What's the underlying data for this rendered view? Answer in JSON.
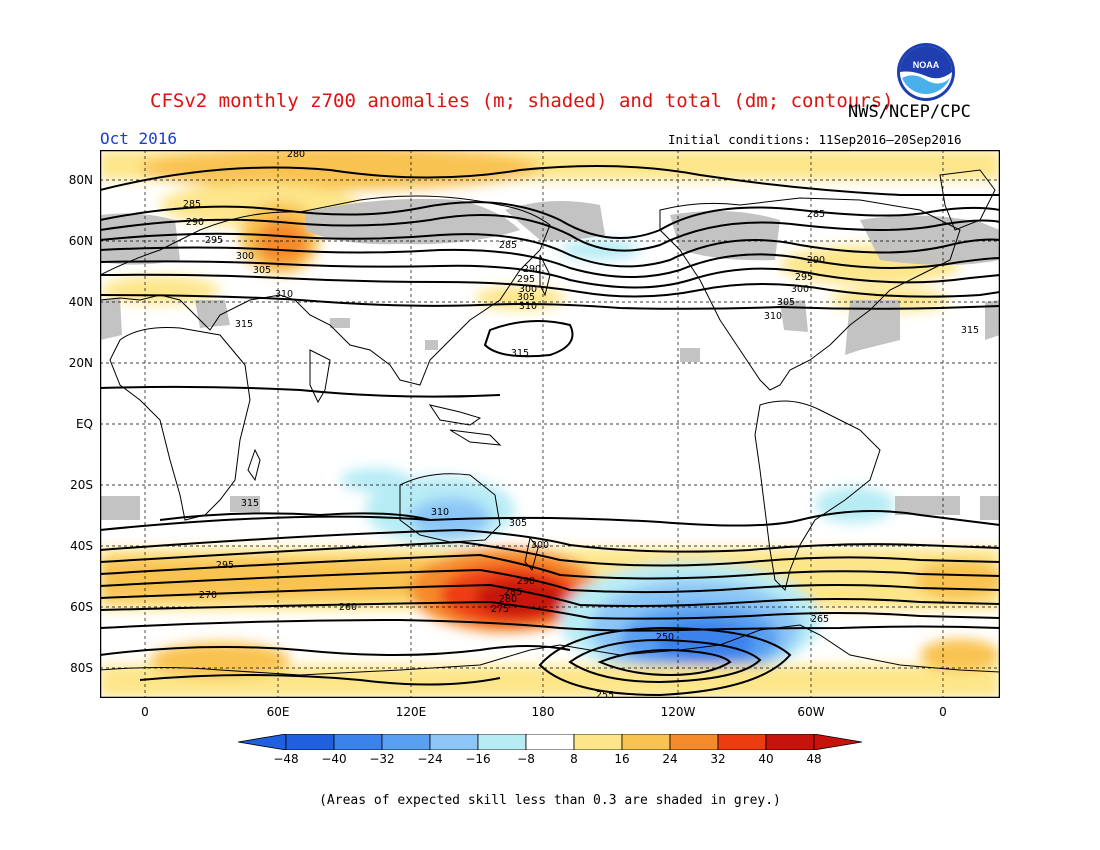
{
  "header": {
    "title": "CFSv2 monthly z700 anomalies (m; shaded) and total (dm; contours)",
    "agency": "NWS/NCEP/CPC",
    "month": "Oct 2016",
    "initial_conditions": "Initial conditions: 11Sep2016–20Sep2016",
    "logo_text": "NOAA"
  },
  "map": {
    "lat_labels": [
      "80N",
      "60N",
      "40N",
      "20N",
      "EQ",
      "20S",
      "40S",
      "60S",
      "80S"
    ],
    "lon_labels": [
      "0",
      "60E",
      "120E",
      "180",
      "120W",
      "60W",
      "0"
    ],
    "contour_labels_nh": [
      "280",
      "285",
      "290",
      "295",
      "300",
      "305",
      "310",
      "315",
      "285",
      "290",
      "295",
      "300",
      "305",
      "310",
      "315",
      "285",
      "290",
      "295",
      "300",
      "305",
      "310",
      "315"
    ],
    "contour_labels_sh": [
      "310",
      "315",
      "305",
      "300",
      "295",
      "290",
      "285",
      "280",
      "275",
      "270",
      "265",
      "260",
      "255",
      "250"
    ],
    "colors": {
      "land_outline": "#000000",
      "grid": "#000000",
      "low_skill_grey": "#c0c0c0"
    }
  },
  "colorbar": {
    "labels": [
      "−48",
      "−40",
      "−32",
      "−24",
      "−16",
      "−8",
      "8",
      "16",
      "24",
      "32",
      "40",
      "48"
    ],
    "colors": [
      "#2060e0",
      "#3b82ec",
      "#5aa0f0",
      "#8cc6f7",
      "#b8ecf5",
      "#ffffff",
      "#fde68a",
      "#f9c351",
      "#f58a2a",
      "#ee3c12",
      "#c8120c"
    ]
  },
  "footnote": "(Areas of expected skill less than 0.3 are shaded in grey.)"
}
